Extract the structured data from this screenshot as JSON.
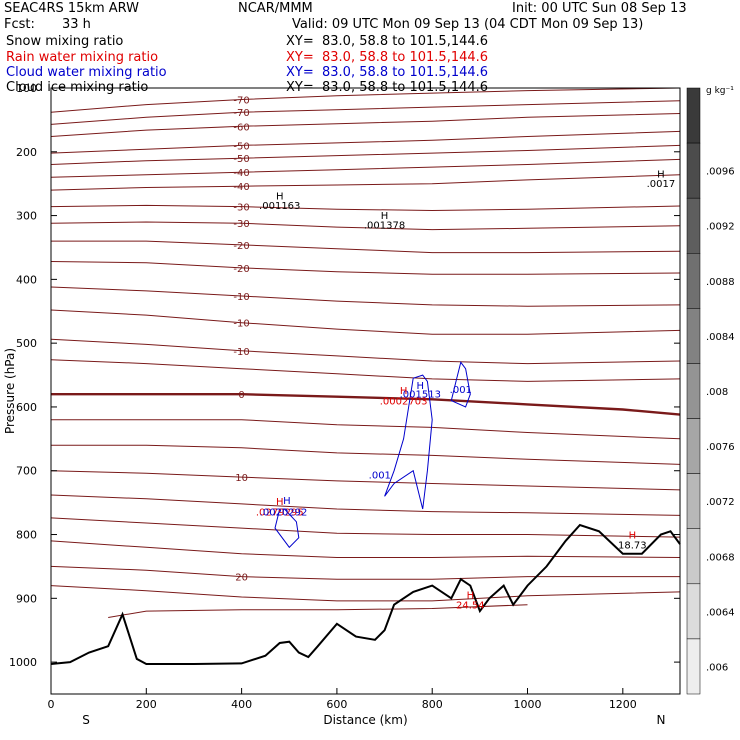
{
  "header": {
    "model": "SEAC4RS 15km ARW",
    "center": "NCAR/MMM",
    "init": "Init: 00 UTC Sun 08 Sep 13",
    "fcst_label": "Fcst:",
    "fcst_value": "33 h",
    "valid": "Valid: 09 UTC Mon 09 Sep 13 (04 CDT Mon 09 Sep 13)"
  },
  "fields": [
    {
      "name": "Snow mixing ratio",
      "xy": "XY=  83.0, 58.8 to 101.5,144.6",
      "color": "#000000"
    },
    {
      "name": "Rain water mixing ratio",
      "xy": "XY=  83.0, 58.8 to 101.5,144.6",
      "color": "#e00000"
    },
    {
      "name": "Cloud water mixing ratio",
      "xy": "XY=  83.0, 58.8 to 101.5,144.6",
      "color": "#0000cc"
    },
    {
      "name": "Cloud ice mixing ratio",
      "xy": "XY=  83.0, 58.8 to 101.5,144.6",
      "color": "#000000"
    }
  ],
  "chart_data": {
    "type": "line",
    "xlabel": "Distance (km)",
    "ylabel": "Pressure (hPa)",
    "xlim": [
      0,
      1320
    ],
    "ylim": [
      1050,
      100
    ],
    "x_ticks": [
      0,
      200,
      400,
      600,
      800,
      1000,
      1200
    ],
    "y_ticks": [
      100,
      200,
      300,
      400,
      500,
      600,
      700,
      800,
      900,
      1000
    ],
    "x_tick_labels": [
      "0",
      "200",
      "400",
      "600",
      "800",
      "1000",
      "1200"
    ],
    "y_tick_labels": [
      "100",
      "200",
      "300",
      "400",
      "500",
      "600",
      "700",
      "800",
      "900",
      "1000"
    ],
    "endpoints": {
      "left": "S",
      "right": "N"
    },
    "temperature_contours": [
      {
        "label": "-70",
        "points": [
          [
            0,
            138
          ],
          [
            200,
            126
          ],
          [
            400,
            118
          ],
          [
            600,
            112
          ],
          [
            800,
            108
          ],
          [
            1000,
            104
          ],
          [
            1320,
            100
          ]
        ]
      },
      {
        "label": "-70",
        "points": [
          [
            0,
            157
          ],
          [
            200,
            146
          ],
          [
            400,
            138
          ],
          [
            600,
            134
          ],
          [
            800,
            130
          ],
          [
            1000,
            126
          ],
          [
            1320,
            120
          ]
        ]
      },
      {
        "label": "-60",
        "points": [
          [
            0,
            176
          ],
          [
            200,
            166
          ],
          [
            400,
            160
          ],
          [
            600,
            156
          ],
          [
            800,
            152
          ],
          [
            1000,
            146
          ],
          [
            1320,
            140
          ]
        ]
      },
      {
        "label": "-50",
        "points": [
          [
            0,
            202
          ],
          [
            200,
            196
          ],
          [
            400,
            190
          ],
          [
            600,
            186
          ],
          [
            800,
            182
          ],
          [
            1000,
            176
          ],
          [
            1320,
            168
          ]
        ]
      },
      {
        "label": "-50",
        "points": [
          [
            0,
            220
          ],
          [
            200,
            214
          ],
          [
            400,
            210
          ],
          [
            600,
            206
          ],
          [
            800,
            202
          ],
          [
            1000,
            198
          ],
          [
            1320,
            190
          ]
        ]
      },
      {
        "label": "-40",
        "points": [
          [
            0,
            240
          ],
          [
            200,
            236
          ],
          [
            400,
            232
          ],
          [
            600,
            228
          ],
          [
            800,
            224
          ],
          [
            1000,
            220
          ],
          [
            1320,
            212
          ]
        ]
      },
      {
        "label": "-40",
        "points": [
          [
            0,
            260
          ],
          [
            200,
            256
          ],
          [
            400,
            254
          ],
          [
            600,
            252
          ],
          [
            800,
            250
          ],
          [
            1000,
            244
          ],
          [
            1320,
            236
          ]
        ]
      },
      {
        "label": "-30",
        "points": [
          [
            0,
            286
          ],
          [
            200,
            284
          ],
          [
            400,
            286
          ],
          [
            600,
            290
          ],
          [
            800,
            292
          ],
          [
            1000,
            290
          ],
          [
            1320,
            285
          ]
        ]
      },
      {
        "label": "-30",
        "points": [
          [
            0,
            312
          ],
          [
            200,
            310
          ],
          [
            400,
            312
          ],
          [
            600,
            318
          ],
          [
            800,
            322
          ],
          [
            1000,
            320
          ],
          [
            1320,
            316
          ]
        ]
      },
      {
        "label": "-20",
        "points": [
          [
            0,
            340
          ],
          [
            200,
            340
          ],
          [
            400,
            346
          ],
          [
            600,
            352
          ],
          [
            800,
            358
          ],
          [
            1000,
            358
          ],
          [
            1320,
            356
          ]
        ]
      },
      {
        "label": "-20",
        "points": [
          [
            0,
            372
          ],
          [
            200,
            374
          ],
          [
            400,
            382
          ],
          [
            600,
            388
          ],
          [
            800,
            392
          ],
          [
            1000,
            392
          ],
          [
            1320,
            390
          ]
        ]
      },
      {
        "label": "-10",
        "points": [
          [
            0,
            412
          ],
          [
            200,
            418
          ],
          [
            400,
            426
          ],
          [
            600,
            434
          ],
          [
            800,
            440
          ],
          [
            1000,
            442
          ],
          [
            1320,
            440
          ]
        ]
      },
      {
        "label": "-10",
        "points": [
          [
            0,
            448
          ],
          [
            200,
            456
          ],
          [
            400,
            468
          ],
          [
            600,
            478
          ],
          [
            800,
            486
          ],
          [
            1000,
            486
          ],
          [
            1320,
            480
          ]
        ]
      },
      {
        "label": "-10",
        "points": [
          [
            0,
            494
          ],
          [
            200,
            502
          ],
          [
            400,
            512
          ],
          [
            600,
            520
          ],
          [
            800,
            528
          ],
          [
            1000,
            532
          ],
          [
            1320,
            528
          ]
        ]
      },
      {
        "label": "",
        "points": [
          [
            0,
            526
          ],
          [
            200,
            532
          ],
          [
            400,
            540
          ],
          [
            600,
            548
          ],
          [
            800,
            556
          ],
          [
            1000,
            560
          ],
          [
            1320,
            556
          ]
        ]
      },
      {
        "label": "0",
        "bold": true,
        "points": [
          [
            0,
            580
          ],
          [
            200,
            580
          ],
          [
            400,
            580
          ],
          [
            600,
            584
          ],
          [
            800,
            588
          ],
          [
            1000,
            596
          ],
          [
            1200,
            604
          ],
          [
            1320,
            612
          ]
        ]
      },
      {
        "label": "",
        "points": [
          [
            0,
            620
          ],
          [
            200,
            620
          ],
          [
            400,
            620
          ],
          [
            600,
            628
          ],
          [
            800,
            632
          ],
          [
            1000,
            640
          ],
          [
            1320,
            650
          ]
        ]
      },
      {
        "label": "",
        "points": [
          [
            0,
            660
          ],
          [
            200,
            660
          ],
          [
            400,
            664
          ],
          [
            600,
            672
          ],
          [
            800,
            676
          ],
          [
            1000,
            682
          ],
          [
            1320,
            690
          ]
        ]
      },
      {
        "label": "10",
        "points": [
          [
            0,
            700
          ],
          [
            200,
            704
          ],
          [
            400,
            710
          ],
          [
            600,
            716
          ],
          [
            800,
            720
          ],
          [
            1000,
            724
          ],
          [
            1320,
            730
          ]
        ]
      },
      {
        "label": "",
        "points": [
          [
            0,
            738
          ],
          [
            200,
            744
          ],
          [
            400,
            752
          ],
          [
            600,
            760
          ],
          [
            800,
            764
          ],
          [
            1000,
            766
          ],
          [
            1320,
            770
          ]
        ]
      },
      {
        "label": "",
        "points": [
          [
            0,
            774
          ],
          [
            200,
            782
          ],
          [
            400,
            790
          ],
          [
            600,
            798
          ],
          [
            800,
            800
          ],
          [
            1000,
            800
          ],
          [
            1320,
            804
          ]
        ]
      },
      {
        "label": "",
        "points": [
          [
            0,
            810
          ],
          [
            200,
            820
          ],
          [
            400,
            830
          ],
          [
            600,
            836
          ],
          [
            800,
            836
          ],
          [
            1000,
            834
          ],
          [
            1320,
            836
          ]
        ]
      },
      {
        "label": "20",
        "points": [
          [
            0,
            850
          ],
          [
            200,
            856
          ],
          [
            400,
            866
          ],
          [
            600,
            870
          ],
          [
            800,
            870
          ],
          [
            1000,
            866
          ],
          [
            1320,
            866
          ]
        ]
      },
      {
        "label": "",
        "points": [
          [
            0,
            880
          ],
          [
            200,
            888
          ],
          [
            400,
            898
          ],
          [
            600,
            904
          ],
          [
            800,
            904
          ],
          [
            1000,
            896
          ],
          [
            1320,
            890
          ]
        ]
      },
      {
        "label": "",
        "points": [
          [
            120,
            930
          ],
          [
            200,
            920
          ],
          [
            400,
            918
          ],
          [
            600,
            918
          ],
          [
            800,
            916
          ],
          [
            1000,
            910
          ]
        ]
      }
    ],
    "terrain": {
      "points": [
        [
          0,
          1003
        ],
        [
          40,
          1000
        ],
        [
          80,
          985
        ],
        [
          120,
          975
        ],
        [
          150,
          925
        ],
        [
          180,
          995
        ],
        [
          200,
          1003
        ],
        [
          300,
          1003
        ],
        [
          400,
          1002
        ],
        [
          450,
          990
        ],
        [
          480,
          970
        ],
        [
          500,
          968
        ],
        [
          520,
          985
        ],
        [
          540,
          992
        ],
        [
          560,
          975
        ],
        [
          600,
          940
        ],
        [
          640,
          960
        ],
        [
          680,
          965
        ],
        [
          700,
          950
        ],
        [
          720,
          910
        ],
        [
          760,
          890
        ],
        [
          800,
          880
        ],
        [
          840,
          900
        ],
        [
          860,
          870
        ],
        [
          880,
          880
        ],
        [
          900,
          920
        ],
        [
          920,
          900
        ],
        [
          950,
          880
        ],
        [
          970,
          910
        ],
        [
          1000,
          880
        ],
        [
          1040,
          850
        ],
        [
          1080,
          810
        ],
        [
          1110,
          785
        ],
        [
          1150,
          795
        ],
        [
          1200,
          830
        ],
        [
          1240,
          830
        ],
        [
          1280,
          800
        ],
        [
          1300,
          795
        ],
        [
          1320,
          815
        ]
      ]
    },
    "cloud_water_contours": [
      {
        "label": ".001",
        "points": [
          [
            760,
            555
          ],
          [
            740,
            650
          ],
          [
            720,
            700
          ],
          [
            700,
            740
          ],
          [
            720,
            720
          ],
          [
            760,
            700
          ],
          [
            780,
            760
          ],
          [
            790,
            700
          ],
          [
            800,
            620
          ],
          [
            790,
            560
          ],
          [
            780,
            550
          ],
          [
            760,
            555
          ]
        ]
      },
      {
        "label": ".001",
        "points": [
          [
            850,
            560
          ],
          [
            840,
            590
          ],
          [
            870,
            600
          ],
          [
            880,
            580
          ],
          [
            870,
            540
          ],
          [
            860,
            530
          ],
          [
            850,
            560
          ]
        ]
      },
      {
        "label": "",
        "points": [
          [
            480,
            760
          ],
          [
            470,
            790
          ],
          [
            500,
            820
          ],
          [
            520,
            805
          ],
          [
            515,
            780
          ],
          [
            490,
            760
          ],
          [
            480,
            760
          ]
        ]
      }
    ],
    "annotations": [
      {
        "text": "H",
        "x": 480,
        "y": 275,
        "color": "#000000"
      },
      {
        "text": ".001163",
        "x": 480,
        "y": 290,
        "color": "#000000"
      },
      {
        "text": "H",
        "x": 700,
        "y": 305,
        "color": "#000000"
      },
      {
        "text": ".001378",
        "x": 700,
        "y": 320,
        "color": "#000000"
      },
      {
        "text": "H",
        "x": 1280,
        "y": 240,
        "color": "#000000"
      },
      {
        "text": ".0017",
        "x": 1280,
        "y": 255,
        "color": "#000000"
      },
      {
        "text": "H",
        "x": 775,
        "y": 572,
        "color": "#0000cc"
      },
      {
        "text": ".001513",
        "x": 775,
        "y": 585,
        "color": "#0000cc"
      },
      {
        "text": "H",
        "x": 740,
        "y": 580,
        "color": "#e00000"
      },
      {
        "text": ".0002703",
        "x": 740,
        "y": 596,
        "color": "#e00000"
      },
      {
        "text": ".001",
        "x": 860,
        "y": 578,
        "color": "#0000cc"
      },
      {
        "text": ".001",
        "x": 690,
        "y": 712,
        "color": "#0000cc"
      },
      {
        "text": "H",
        "x": 495,
        "y": 752,
        "color": "#0000cc"
      },
      {
        "text": "H",
        "x": 480,
        "y": 754,
        "color": "#e00000"
      },
      {
        "text": ".0279295",
        "x": 480,
        "y": 770,
        "color": "#e00000"
      },
      {
        "text": ".0020292",
        "x": 488,
        "y": 770,
        "color": "#0000cc"
      },
      {
        "text": "H",
        "x": 880,
        "y": 900,
        "color": "#e00000"
      },
      {
        "text": "24.54",
        "x": 880,
        "y": 916,
        "color": "#e00000"
      },
      {
        "text": "H",
        "x": 1220,
        "y": 806,
        "color": "#e00000"
      },
      {
        "text": "18.73",
        "x": 1220,
        "y": 822,
        "color": "#000000"
      }
    ],
    "colorbar": {
      "unit": "g kg⁻¹",
      "ticks": [
        ".0096",
        ".0092",
        ".0088",
        ".0084",
        ".008",
        ".0076",
        ".0072",
        ".0068",
        ".0064",
        ".006"
      ],
      "levels": [
        "#3a3a3a",
        "#4c4c4c",
        "#5e5e5e",
        "#707070",
        "#828282",
        "#949494",
        "#a6a6a6",
        "#b8b8b8",
        "#cacaca",
        "#dcdcdc",
        "#eeeeee"
      ]
    }
  }
}
